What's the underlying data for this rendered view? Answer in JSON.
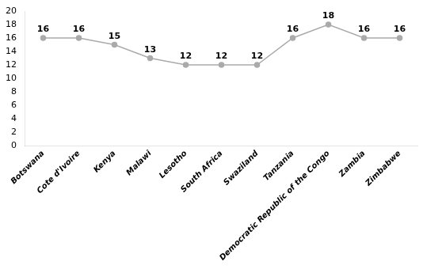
{
  "chart_data": {
    "type": "line",
    "categories": [
      "Botswana",
      "Cote d'Ivoire",
      "Kenya",
      "Malawi",
      "Lesotho",
      "South Africa",
      "Swaziland",
      "Tanzania",
      "Democratic Republic of the Congo",
      "Zambia",
      "Zimbabwe"
    ],
    "values": [
      16,
      16,
      15,
      13,
      12,
      12,
      12,
      16,
      18,
      16,
      16
    ],
    "color": "#aaaaaa",
    "marker": "circle",
    "ylim": [
      0,
      20
    ],
    "yticks": [
      0,
      2,
      4,
      6,
      8,
      10,
      12,
      14,
      16,
      18,
      20
    ],
    "grid": false,
    "data_labels": true
  }
}
